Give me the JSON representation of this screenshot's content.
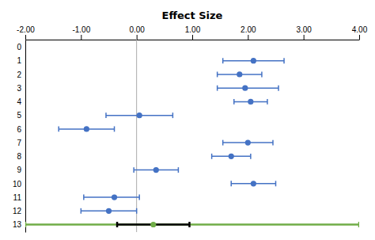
{
  "chart_data": {
    "type": "forest",
    "title": "Effect Size",
    "xlim": [
      -2.0,
      4.0
    ],
    "xticks": [
      {
        "value": -2.0,
        "label": "-2.00"
      },
      {
        "value": -1.0,
        "label": "-1.00"
      },
      {
        "value": 0.0,
        "label": "0.00"
      },
      {
        "value": 1.0,
        "label": "1.00"
      },
      {
        "value": 2.0,
        "label": "2.00"
      },
      {
        "value": 3.0,
        "label": "3.00"
      },
      {
        "value": 4.0,
        "label": "4.00"
      }
    ],
    "categories": [
      "0",
      "1",
      "2",
      "3",
      "4",
      "5",
      "6",
      "7",
      "8",
      "9",
      "10",
      "11",
      "12",
      "13"
    ],
    "reference_line": 0.0,
    "series": [
      {
        "color": "#4472C4",
        "values": [
          null,
          2.1,
          1.85,
          1.95,
          2.05,
          0.05,
          -0.9,
          2.0,
          1.7,
          0.35,
          2.1,
          -0.4,
          -0.5,
          null
        ],
        "lo": [
          null,
          1.55,
          1.45,
          1.45,
          1.75,
          -0.55,
          -1.4,
          1.55,
          1.35,
          -0.05,
          1.7,
          -0.95,
          -1.0,
          null
        ],
        "hi": [
          null,
          2.65,
          2.25,
          2.55,
          2.35,
          0.65,
          -0.4,
          2.45,
          2.05,
          0.75,
          2.5,
          0.05,
          0.0,
          null
        ]
      },
      {
        "color": "#70AD47",
        "values": [
          null,
          null,
          null,
          null,
          null,
          null,
          null,
          null,
          null,
          null,
          null,
          null,
          null,
          0.3
        ],
        "lo": [
          null,
          null,
          null,
          null,
          null,
          null,
          null,
          null,
          null,
          null,
          null,
          null,
          null,
          -2.0
        ],
        "hi": [
          null,
          null,
          null,
          null,
          null,
          null,
          null,
          null,
          null,
          null,
          null,
          null,
          null,
          4.0
        ]
      },
      {
        "color": "#000000",
        "values": [
          null,
          null,
          null,
          null,
          null,
          null,
          null,
          null,
          null,
          null,
          null,
          null,
          null,
          null
        ],
        "lo": [
          null,
          null,
          null,
          null,
          null,
          null,
          null,
          null,
          null,
          null,
          null,
          null,
          null,
          -0.35
        ],
        "hi": [
          null,
          null,
          null,
          null,
          null,
          null,
          null,
          null,
          null,
          null,
          null,
          null,
          null,
          0.95
        ]
      }
    ]
  }
}
